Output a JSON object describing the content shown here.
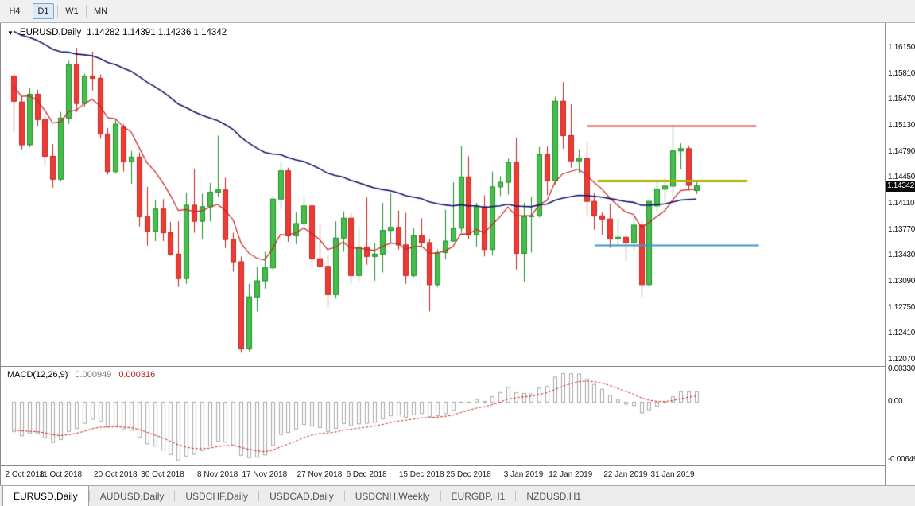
{
  "toolbar": {
    "timeframes": [
      "H4",
      "D1",
      "W1",
      "MN"
    ],
    "active": "D1"
  },
  "chart": {
    "title_symbol": "EURUSD,Daily",
    "ohlc": "1.14282 1.14391 1.14236 1.14342",
    "current_price": "1.14342",
    "price_axis": [
      "1.16150",
      "1.15810",
      "1.15470",
      "1.15130",
      "1.14790",
      "1.14450",
      "1.14110",
      "1.13770",
      "1.13430",
      "1.13090",
      "1.12750",
      "1.12410",
      "1.12070"
    ]
  },
  "macd_panel": {
    "label": "MACD(12,26,9)",
    "value_main": "0.000949",
    "value_signal": "0.000316",
    "axis": [
      "0.003306",
      "0.00",
      "-0.00649"
    ]
  },
  "time_axis": [
    "2 Oct 2018",
    "11 Oct 2018",
    "20 Oct 2018",
    "30 Oct 2018",
    "8 Nov 2018",
    "17 Nov 2018",
    "27 Nov 2018",
    "6 Dec 2018",
    "15 Dec 2018",
    "25 Dec 2018",
    "3 Jan 2019",
    "12 Jan 2019",
    "22 Jan 2019",
    "31 Jan 2019"
  ],
  "tabs": {
    "items": [
      "EURUSD,Daily",
      "AUDUSD,Daily",
      "USDCHF,Daily",
      "USDCAD,Daily",
      "USDCNH,Weekly",
      "EURGBP,H1",
      "NZDUSD,H1"
    ],
    "active": "EURUSD,Daily"
  },
  "chart_data": {
    "type": "candlestick",
    "symbol": "EURUSD",
    "timeframe": "Daily",
    "price_range": [
      1.1207,
      1.1615
    ],
    "tick_label_indices": [
      0,
      6,
      13,
      19,
      26,
      32,
      39,
      45,
      52,
      58,
      65,
      71,
      78,
      84
    ],
    "candles": [
      [
        1.1578,
        1.1581,
        1.1505,
        1.1545
      ],
      [
        1.1544,
        1.1552,
        1.1482,
        1.1488
      ],
      [
        1.1488,
        1.1562,
        1.1485,
        1.1554
      ],
      [
        1.1554,
        1.156,
        1.1512,
        1.1521
      ],
      [
        1.1521,
        1.1529,
        1.1462,
        1.1473
      ],
      [
        1.1473,
        1.1489,
        1.1432,
        1.1443
      ],
      [
        1.1443,
        1.1531,
        1.144,
        1.1523
      ],
      [
        1.1523,
        1.1598,
        1.1515,
        1.1593
      ],
      [
        1.1593,
        1.1615,
        1.1531,
        1.1542
      ],
      [
        1.1542,
        1.1581,
        1.1538,
        1.1578
      ],
      [
        1.1578,
        1.161,
        1.1559,
        1.1575
      ],
      [
        1.1575,
        1.158,
        1.1496,
        1.1502
      ],
      [
        1.1502,
        1.151,
        1.1449,
        1.1453
      ],
      [
        1.1453,
        1.1522,
        1.145,
        1.1515
      ],
      [
        1.1511,
        1.1515,
        1.1453,
        1.1466
      ],
      [
        1.1466,
        1.148,
        1.1437,
        1.1472
      ],
      [
        1.1472,
        1.1478,
        1.1381,
        1.1394
      ],
      [
        1.1394,
        1.1433,
        1.1356,
        1.1375
      ],
      [
        1.1375,
        1.1416,
        1.1362,
        1.1404
      ],
      [
        1.1404,
        1.1417,
        1.1362,
        1.1373
      ],
      [
        1.1373,
        1.1387,
        1.1343,
        1.1345
      ],
      [
        1.1345,
        1.1388,
        1.1302,
        1.1313
      ],
      [
        1.1313,
        1.1425,
        1.1306,
        1.1409
      ],
      [
        1.1409,
        1.1456,
        1.1373,
        1.1388
      ],
      [
        1.1388,
        1.1424,
        1.1365,
        1.1407
      ],
      [
        1.1407,
        1.1438,
        1.1388,
        1.1426
      ],
      [
        1.1426,
        1.15,
        1.142,
        1.1429
      ],
      [
        1.1429,
        1.1445,
        1.1353,
        1.1364
      ],
      [
        1.1364,
        1.1373,
        1.1322,
        1.1335
      ],
      [
        1.1335,
        1.1342,
        1.1216,
        1.1221
      ],
      [
        1.1221,
        1.1306,
        1.1218,
        1.1289
      ],
      [
        1.1289,
        1.1328,
        1.127,
        1.131
      ],
      [
        1.131,
        1.1348,
        1.13,
        1.1327
      ],
      [
        1.1327,
        1.1421,
        1.1322,
        1.1417
      ],
      [
        1.1417,
        1.1466,
        1.1404,
        1.1454
      ],
      [
        1.1454,
        1.1458,
        1.1361,
        1.1369
      ],
      [
        1.1369,
        1.14,
        1.1358,
        1.1385
      ],
      [
        1.1385,
        1.1421,
        1.1377,
        1.1408
      ],
      [
        1.1408,
        1.141,
        1.133,
        1.1339
      ],
      [
        1.1339,
        1.1383,
        1.1327,
        1.1329
      ],
      [
        1.1329,
        1.1344,
        1.1275,
        1.1292
      ],
      [
        1.1292,
        1.1388,
        1.1287,
        1.1366
      ],
      [
        1.1366,
        1.1401,
        1.1348,
        1.1392
      ],
      [
        1.1392,
        1.1399,
        1.1306,
        1.1317
      ],
      [
        1.1317,
        1.138,
        1.131,
        1.1354
      ],
      [
        1.1354,
        1.1419,
        1.1331,
        1.1342
      ],
      [
        1.1342,
        1.136,
        1.131,
        1.1345
      ],
      [
        1.1345,
        1.1412,
        1.1321,
        1.1376
      ],
      [
        1.1376,
        1.1425,
        1.136,
        1.138
      ],
      [
        1.138,
        1.1402,
        1.1351,
        1.1357
      ],
      [
        1.1357,
        1.1399,
        1.1306,
        1.1317
      ],
      [
        1.1317,
        1.1379,
        1.1315,
        1.1369
      ],
      [
        1.1369,
        1.1392,
        1.1356,
        1.136
      ],
      [
        1.136,
        1.1365,
        1.127,
        1.1305
      ],
      [
        1.1305,
        1.1351,
        1.1302,
        1.1347
      ],
      [
        1.1347,
        1.1403,
        1.1338,
        1.1362
      ],
      [
        1.1362,
        1.1439,
        1.1361,
        1.1379
      ],
      [
        1.1379,
        1.1486,
        1.1373,
        1.1446
      ],
      [
        1.1446,
        1.1473,
        1.1365,
        1.137
      ],
      [
        1.137,
        1.1412,
        1.1355,
        1.1407
      ],
      [
        1.1407,
        1.1422,
        1.1342,
        1.1351
      ],
      [
        1.1351,
        1.1453,
        1.1343,
        1.1433
      ],
      [
        1.1433,
        1.1447,
        1.1421,
        1.1439
      ],
      [
        1.1439,
        1.147,
        1.1423,
        1.1465
      ],
      [
        1.1465,
        1.1497,
        1.1325,
        1.1346
      ],
      [
        1.1346,
        1.1412,
        1.1309,
        1.1394
      ],
      [
        1.1394,
        1.142,
        1.1347,
        1.1395
      ],
      [
        1.1395,
        1.1485,
        1.1393,
        1.1475
      ],
      [
        1.1475,
        1.1486,
        1.1422,
        1.1441
      ],
      [
        1.1441,
        1.1551,
        1.1436,
        1.1545
      ],
      [
        1.1545,
        1.157,
        1.1483,
        1.15
      ],
      [
        1.15,
        1.1541,
        1.1458,
        1.1467
      ],
      [
        1.1467,
        1.1482,
        1.1451,
        1.147
      ],
      [
        1.147,
        1.1491,
        1.1396,
        1.1414
      ],
      [
        1.1414,
        1.1425,
        1.1377,
        1.1395
      ],
      [
        1.1395,
        1.14,
        1.137,
        1.1391
      ],
      [
        1.1391,
        1.1411,
        1.1353,
        1.1365
      ],
      [
        1.1365,
        1.1392,
        1.1358,
        1.1367
      ],
      [
        1.1367,
        1.137,
        1.1336,
        1.136
      ],
      [
        1.136,
        1.1394,
        1.135,
        1.1383
      ],
      [
        1.1383,
        1.1388,
        1.1289,
        1.1305
      ],
      [
        1.1305,
        1.1418,
        1.1302,
        1.1414
      ],
      [
        1.1408,
        1.1439,
        1.14,
        1.143
      ],
      [
        1.143,
        1.1444,
        1.1413,
        1.1434
      ],
      [
        1.1434,
        1.1514,
        1.1421,
        1.148
      ],
      [
        1.148,
        1.149,
        1.1456,
        1.1483
      ],
      [
        1.1483,
        1.1487,
        1.1428,
        1.1435
      ],
      [
        1.14282,
        1.14391,
        1.14236,
        1.14342
      ]
    ],
    "indicators": {
      "ma_fast": {
        "type": "ema",
        "period": 10,
        "color": "#cc2222",
        "seed": 1.157
      },
      "ma_slow": {
        "type": "ema",
        "period": 55,
        "color": "#14146a",
        "seed": 1.164
      },
      "macd": {
        "fast": 12,
        "slow": 26,
        "signal": 9,
        "hist_color": "#a9a9a9",
        "signal_color": "#cc2222",
        "seed_fast": 1.1573,
        "seed_slow": 1.1603,
        "seed_signal": -0.0028,
        "range": [
          -0.00649,
          0.003306
        ]
      }
    },
    "hlines": [
      {
        "price": 1.1513,
        "color": "#e23b2e",
        "width": 2,
        "x1": 0.663,
        "x2": 0.855
      },
      {
        "price": 1.1441,
        "color": "#b0b000",
        "width": 3,
        "x1": 0.675,
        "x2": 0.845
      },
      {
        "price": 1.1357,
        "color": "#3d94d1",
        "width": 2,
        "x1": 0.672,
        "x2": 0.858
      }
    ],
    "colors": {
      "up_fill": "#46bd4c",
      "up_border": "#1f8f24",
      "down_fill": "#ee3b35",
      "down_border": "#c42320",
      "background": "#ffffff"
    }
  }
}
